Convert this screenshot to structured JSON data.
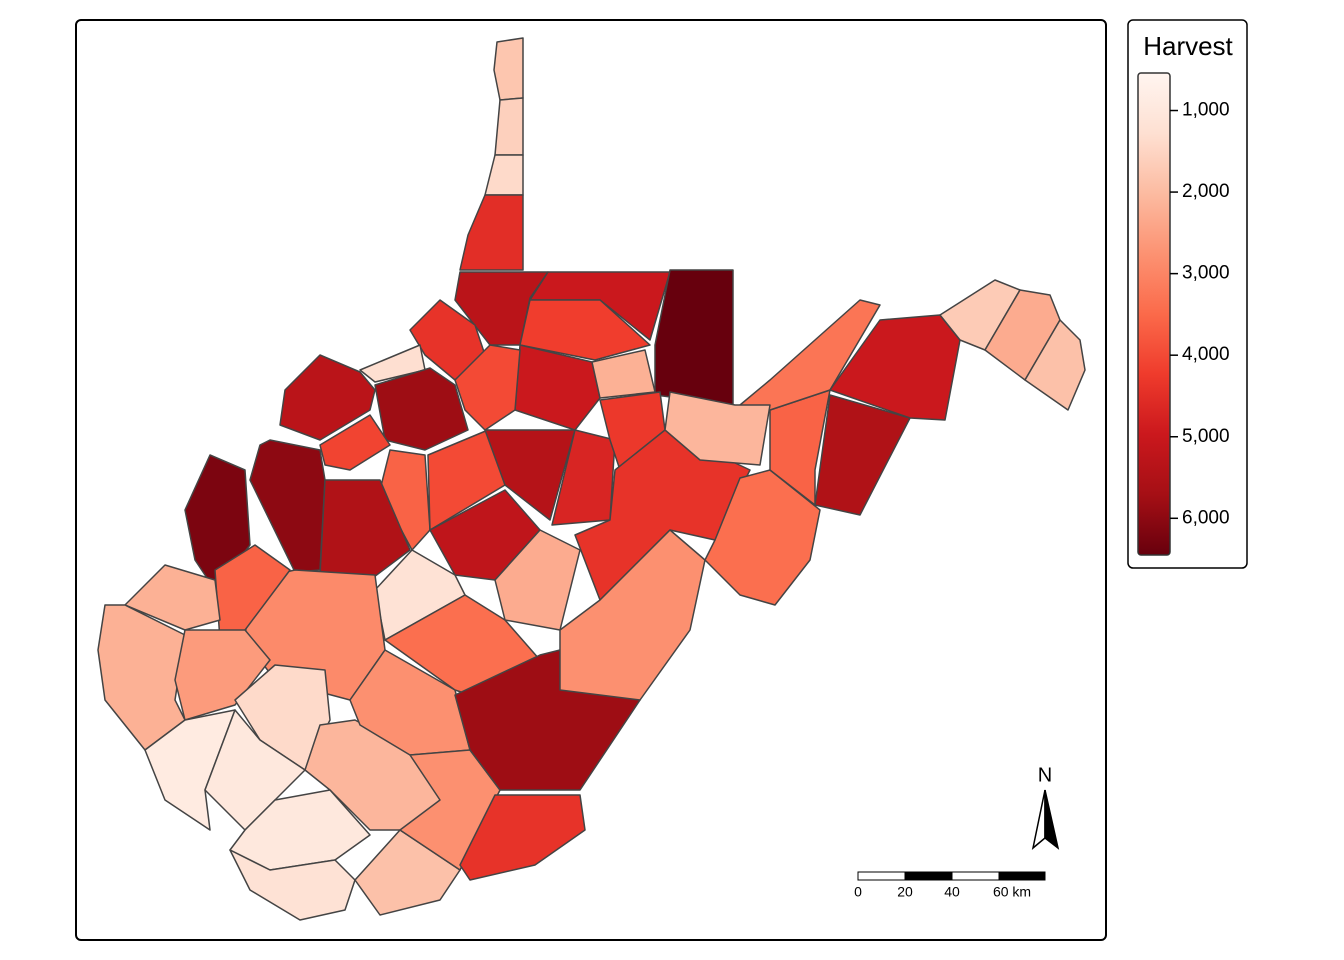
{
  "chart_data": {
    "type": "choropleth",
    "legend_title": "Harvest",
    "values": [
      1800,
      1600,
      1400,
      4500,
      5300,
      5000,
      6500,
      4400,
      1300,
      4200,
      5000,
      2200,
      4000,
      5800,
      5300,
      4100,
      6000,
      6200,
      3600,
      5500,
      4000,
      5400,
      4700,
      4300,
      4400,
      5200,
      2300,
      1200,
      2900,
      3600,
      2200,
      2200,
      2600,
      1400,
      900,
      1000,
      2100,
      1000,
      1200,
      1900,
      2800,
      3400,
      2800,
      5800,
      4400,
      2800,
      3400,
      3600,
      5500,
      3300,
      5000,
      1700,
      2300,
      1900,
      2100
    ],
    "palette": [
      "#fff5f0",
      "#fee0d2",
      "#fcbba1",
      "#fc9272",
      "#fb6a4a",
      "#ef3b2c",
      "#cb181d",
      "#a50f15",
      "#67000d"
    ],
    "lim": [
      540,
      6450
    ],
    "ticks": [
      {
        "value": 1000,
        "label": "1,000"
      },
      {
        "value": 2000,
        "label": "2,000"
      },
      {
        "value": 3000,
        "label": "3,000"
      },
      {
        "value": 4000,
        "label": "4,000"
      },
      {
        "value": 5000,
        "label": "5,000"
      },
      {
        "value": 6000,
        "label": "6,000"
      }
    ],
    "north_label": "N",
    "scale_labels": [
      "0",
      "20",
      "40",
      "60 km"
    ]
  }
}
